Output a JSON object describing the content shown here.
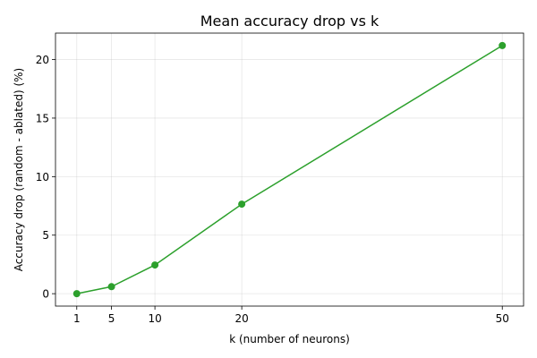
{
  "chart_data": {
    "type": "line",
    "title": "Mean accuracy drop vs k",
    "xlabel": "k (number of neurons)",
    "ylabel": "Accuracy drop (random - ablated) (%)",
    "x": [
      1,
      5,
      10,
      20,
      50
    ],
    "series": [
      {
        "values": [
          0.0,
          0.6,
          2.45,
          7.65,
          21.2
        ],
        "color": "#2ca02c",
        "marker": "circle"
      }
    ],
    "xticks": [
      1,
      5,
      10,
      20,
      50
    ],
    "xtick_labels": [
      "1",
      "5",
      "10",
      "20",
      "50"
    ],
    "yticks": [
      0,
      5,
      10,
      15,
      20
    ],
    "ytick_labels": [
      "0",
      "5",
      "10",
      "15",
      "20"
    ],
    "xlim": [
      -1.45,
      52.45
    ],
    "ylim": [
      -1.06,
      22.26
    ],
    "grid": true,
    "legend": "none"
  }
}
